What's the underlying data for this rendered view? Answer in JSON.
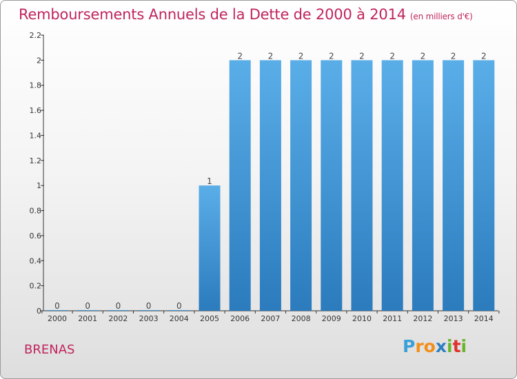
{
  "title": "Remboursements Annuels de la Dette de 2000 à 2014",
  "unit": "(en milliers d'€)",
  "location": "BRENAS",
  "logo": {
    "letters": [
      "P",
      "r",
      "o",
      "x",
      "i",
      "t",
      "i"
    ],
    "colors": [
      "#3aa0d8",
      "#f18f1c",
      "#f18f1c",
      "#2e7fc1",
      "#6ab42d",
      "#e0322f",
      "#6ab42d"
    ]
  },
  "colors": {
    "bar": "#3a92d4",
    "bar_light": "#5aaee8",
    "bar_dark": "#2b7bbd",
    "title": "#c0245c",
    "axis": "#333333"
  },
  "chart_data": {
    "type": "bar",
    "title": "Remboursements Annuels de la Dette de 2000 à 2014",
    "categories": [
      "2000",
      "2001",
      "2002",
      "2003",
      "2004",
      "2005",
      "2006",
      "2007",
      "2008",
      "2009",
      "2010",
      "2011",
      "2012",
      "2013",
      "2014"
    ],
    "values": [
      0,
      0,
      0,
      0,
      0,
      1,
      2,
      2,
      2,
      2,
      2,
      2,
      2,
      2,
      2
    ],
    "data_labels": [
      "0",
      "0",
      "0",
      "0",
      "0",
      "1",
      "2",
      "2",
      "2",
      "2",
      "2",
      "2",
      "2",
      "2",
      "2"
    ],
    "ylim": [
      0,
      2.2
    ],
    "yticks": [
      0,
      0.2,
      0.4,
      0.6,
      0.8,
      1,
      1.2,
      1.4,
      1.6,
      1.8,
      2,
      2.2
    ],
    "ytick_labels": [
      "0",
      "0.2",
      "0.4",
      "0.6",
      "0.8",
      "1",
      "1.2",
      "1.4",
      "1.6",
      "1.8",
      "2",
      "2.2"
    ],
    "xlabel": "",
    "ylabel": "",
    "grid": false,
    "legend": "none"
  }
}
